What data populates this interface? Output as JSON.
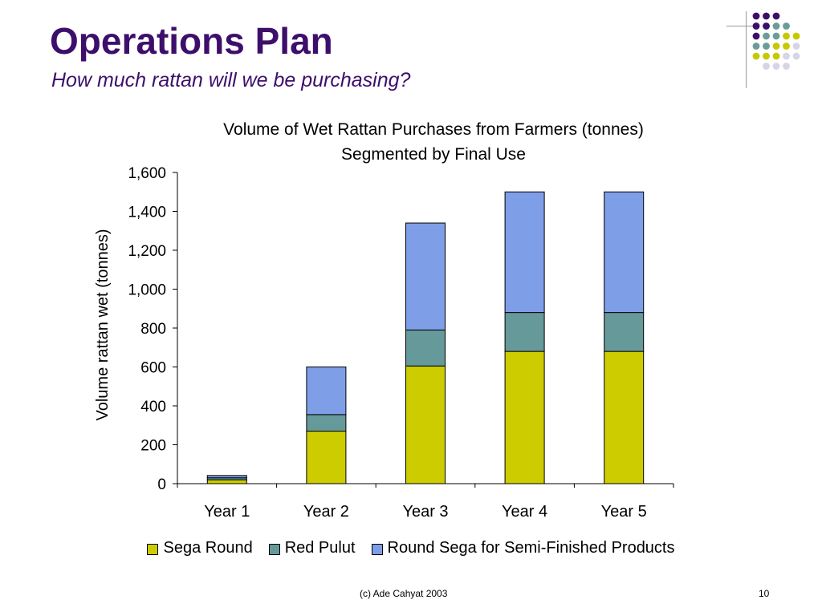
{
  "slide": {
    "title": "Operations Plan",
    "subtitle": "How much rattan will we be purchasing?",
    "footer_credit": "(c) Ade Cahyat 2003",
    "page_number": "10"
  },
  "colors": {
    "title": "#3d0f6b",
    "deco_palette": [
      "#3d0f6b",
      "#6b9c99",
      "#c8c800",
      "#d5d5e8"
    ]
  },
  "decoration": {
    "dot_rows": [
      [
        "#3d0f6b",
        "#3d0f6b",
        "#3d0f6b",
        "",
        ""
      ],
      [
        "#3d0f6b",
        "#3d0f6b",
        "#6b9c99",
        "#6b9c99",
        ""
      ],
      [
        "#3d0f6b",
        "#6b9c99",
        "#6b9c99",
        "#c8c800",
        "#c8c800"
      ],
      [
        "#6b9c99",
        "#6b9c99",
        "#c8c800",
        "#c8c800",
        "#d5d5e8"
      ],
      [
        "#c8c800",
        "#c8c800",
        "#c8c800",
        "#d5d5e8",
        "#d5d5e8"
      ],
      [
        "",
        "#d5d5e8",
        "#d5d5e8",
        "#d5d5e8",
        ""
      ]
    ]
  },
  "chart_data": {
    "type": "bar",
    "stacked": true,
    "title": "Volume of Wet Rattan Purchases from Farmers (tonnes)",
    "subtitle": "Segmented by Final Use",
    "xlabel": "",
    "ylabel": "Volume rattan wet (tonnes)",
    "ylim": [
      0,
      1600
    ],
    "yticks": [
      0,
      200,
      400,
      600,
      800,
      1000,
      1200,
      1400,
      1600
    ],
    "ytick_labels": [
      "0",
      "200",
      "400",
      "600",
      "800",
      "1,000",
      "1,200",
      "1,400",
      "1,600"
    ],
    "categories": [
      "Year 1",
      "Year 2",
      "Year 3",
      "Year 4",
      "Year 5"
    ],
    "grid": false,
    "legend_position": "bottom",
    "series": [
      {
        "name": "Sega Round",
        "color": "#cccc00",
        "values": [
          20,
          270,
          605,
          680,
          680
        ]
      },
      {
        "name": "Red Pulut",
        "color": "#669999",
        "values": [
          10,
          85,
          185,
          200,
          200
        ]
      },
      {
        "name": "Round Sega for Semi-Finished Products",
        "color": "#7f9ee8",
        "values": [
          12,
          245,
          550,
          620,
          620
        ]
      }
    ]
  }
}
